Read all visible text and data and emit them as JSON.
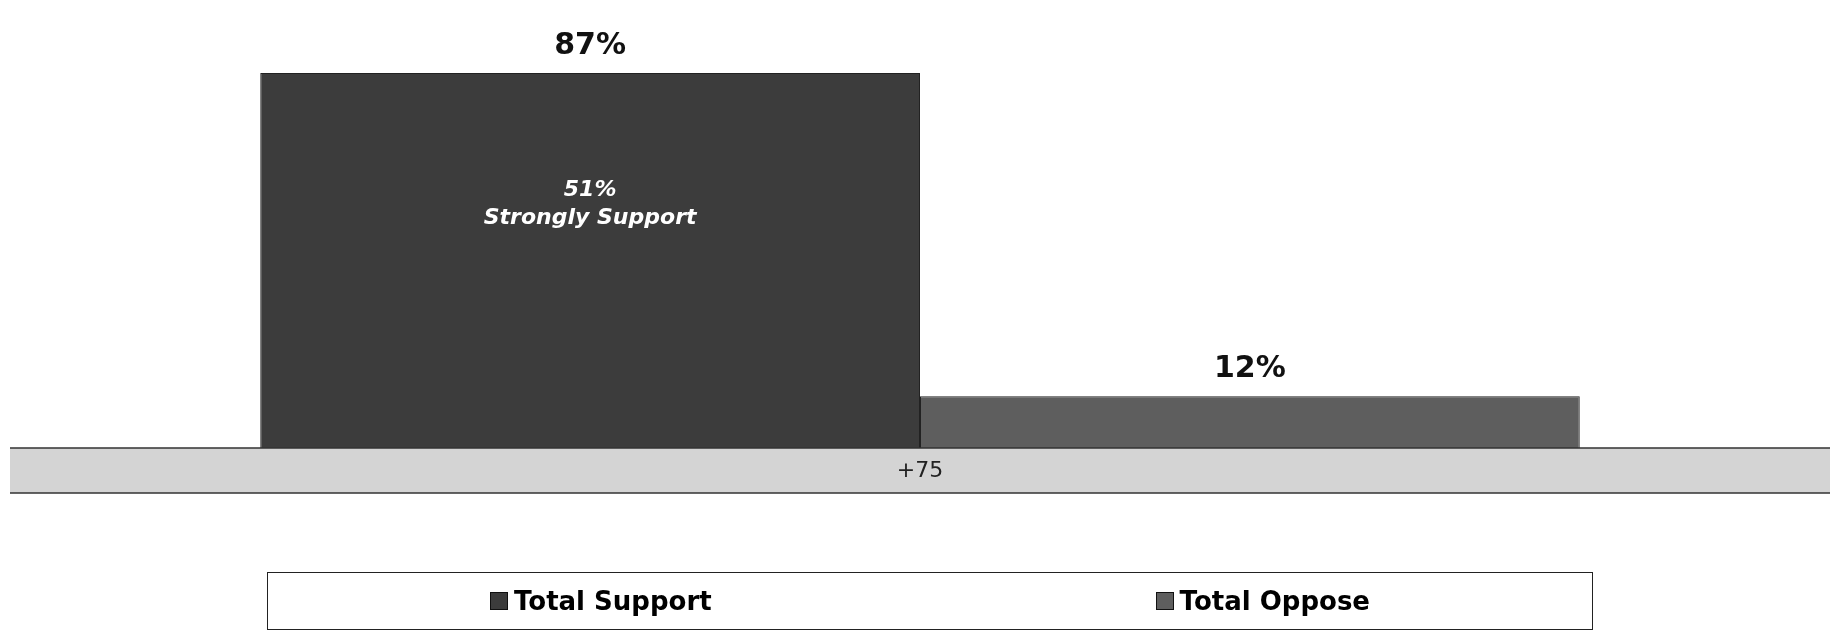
{
  "chart_data": {
    "type": "bar",
    "categories": [
      null
    ],
    "series": [
      {
        "name": "Total Support",
        "color": "#3c3c3c",
        "values": [
          87
        ],
        "value_labels": [
          "87%"
        ]
      },
      {
        "name": "Total Oppose",
        "color": "#5e5e5e",
        "values": [
          12
        ],
        "value_labels": [
          "12%"
        ]
      }
    ],
    "legend": "bottom",
    "annotations": [
      "51%\nStrongly Support",
      "+75"
    ]
  }
}
